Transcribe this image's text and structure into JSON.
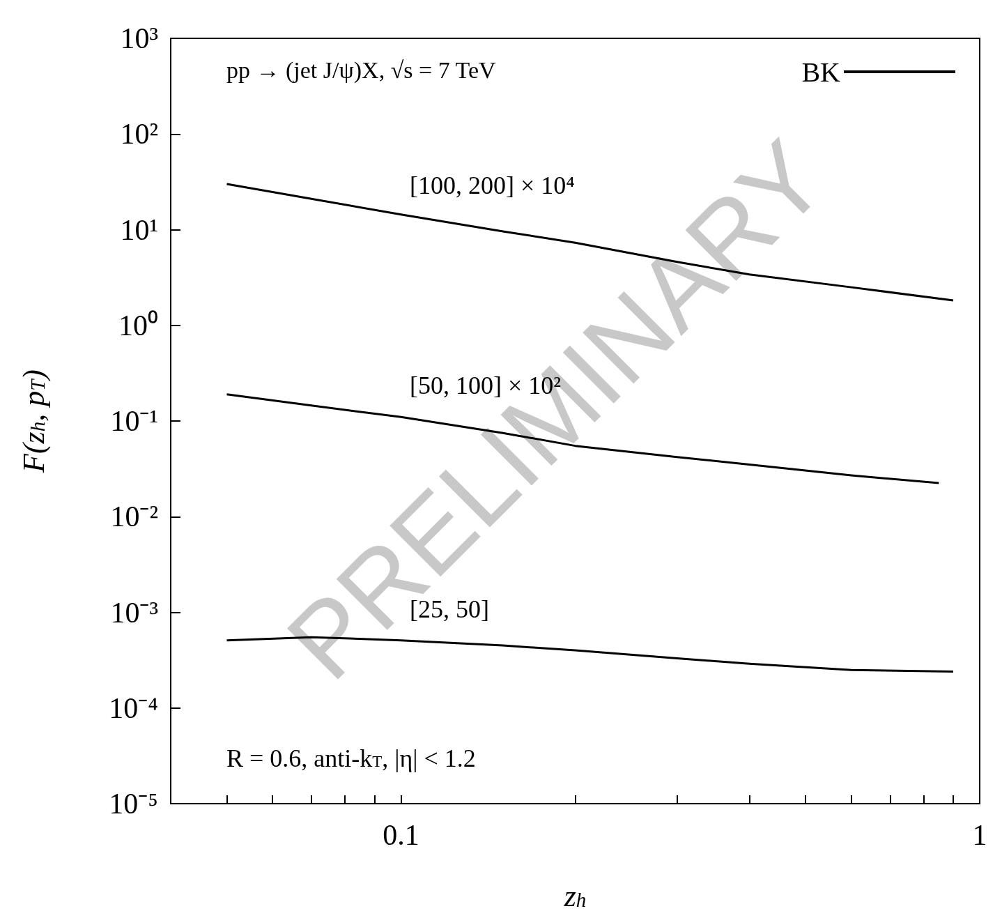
{
  "chart_data": {
    "type": "line",
    "xlabel": "z$_{h}$",
    "ylabel": "F(z$_{h}$, p$_{T}$)",
    "log": "xy",
    "grid": false,
    "legend": "top right",
    "marker": "none",
    "line_style": "solid",
    "xlim": [
      0.04,
      1
    ],
    "xticks": [
      {
        "value": 0.05,
        "label": null
      },
      {
        "value": 0.06,
        "label": null
      },
      {
        "value": 0.07,
        "label": null
      },
      {
        "value": 0.08,
        "label": null
      },
      {
        "value": 0.09,
        "label": null
      },
      0.1,
      {
        "value": 0.2,
        "label": null
      },
      {
        "value": 0.3,
        "label": null
      },
      {
        "value": 0.4,
        "label": null
      },
      {
        "value": 0.5,
        "label": null
      },
      {
        "value": 0.6,
        "label": null
      },
      {
        "value": 0.7,
        "label": null
      },
      {
        "value": 0.8,
        "label": null
      },
      {
        "value": 0.9,
        "label": null
      },
      1
    ],
    "ylim": [
      1e-05,
      1000
    ],
    "yticks": [
      {
        "value": 1e-05,
        "label": "10⁻⁵"
      },
      {
        "value": 0.0001,
        "label": "10⁻⁴"
      },
      {
        "value": 0.001,
        "label": "10⁻³"
      },
      {
        "value": 0.01,
        "label": "10⁻²"
      },
      {
        "value": 0.1,
        "label": "10⁻¹"
      },
      {
        "value": 1,
        "label": "10⁰"
      },
      {
        "value": 10,
        "label": "10¹"
      },
      {
        "value": 100,
        "label": "10²"
      },
      {
        "value": 1000,
        "label": "10³"
      }
    ],
    "series": [
      {
        "name": "BK",
        "color": "#000000",
        "x": [
          0.05,
          0.07,
          0.1,
          0.15,
          0.2,
          0.3,
          0.4,
          0.6,
          0.9
        ],
        "values": [
          30,
          21,
          14.4,
          9.6,
          7.3,
          4.6,
          3.4,
          2.5,
          1.82
        ]
      },
      {
        "color": "#000000",
        "x": [
          0.05,
          0.07,
          0.1,
          0.15,
          0.2,
          0.3,
          0.4,
          0.6,
          0.85
        ],
        "values": [
          0.19,
          0.145,
          0.11,
          0.075,
          0.055,
          0.042,
          0.035,
          0.027,
          0.0225
        ]
      },
      {
        "color": "#000000",
        "x": [
          0.05,
          0.07,
          0.1,
          0.15,
          0.2,
          0.3,
          0.4,
          0.6,
          0.9
        ],
        "values": [
          0.00051,
          0.00055,
          0.00051,
          0.00045,
          0.0004,
          0.00033,
          0.00029,
          0.00025,
          0.00024
        ]
      }
    ],
    "annotations": [
      "pp → (jet J/ψ)X, √s = 7 TeV",
      "R = 0.6, anti-k$_{T}$, |η| < 1.2",
      "PRELIMINARY",
      "[100, 200] × 10⁴",
      "[50, 100] × 10²",
      "[25, 50]"
    ]
  }
}
